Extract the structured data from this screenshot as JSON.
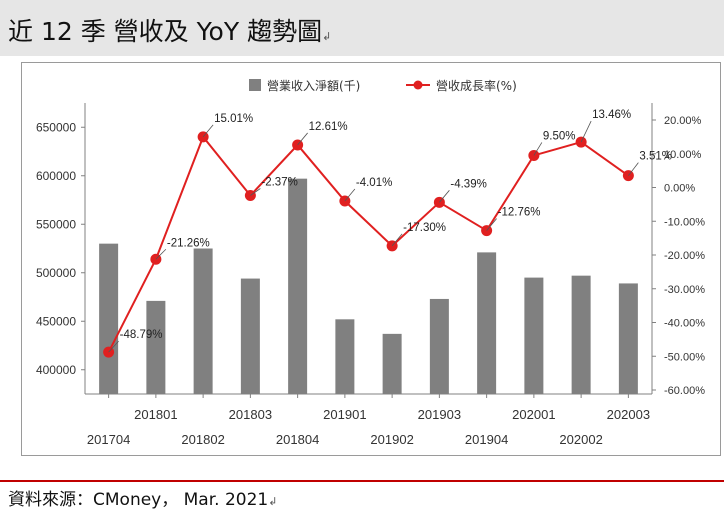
{
  "title": "近 12 季  營收及 YoY 趨勢圖",
  "paragraph_mark": "↲",
  "source": "資料來源：CMoney， Mar. 2021",
  "colors": {
    "bar": "#808080",
    "line": "#e02020",
    "axis": "#808080",
    "grid": "#bfbfbf"
  },
  "chart_data": {
    "type": "bar+line",
    "categories": [
      "201704",
      "201801",
      "201802",
      "201803",
      "201804",
      "201901",
      "201902",
      "201903",
      "201904",
      "202001",
      "202002",
      "202003"
    ],
    "series": [
      {
        "name": "營業收入淨額(千)",
        "axis": "left",
        "type": "bar",
        "values": [
          530000,
          471000,
          525000,
          494000,
          597000,
          452000,
          437000,
          473000,
          521000,
          495000,
          497000,
          489000
        ]
      },
      {
        "name": "營收成長率(%)",
        "axis": "right",
        "type": "line",
        "values": [
          -48.79,
          -21.26,
          15.01,
          -2.37,
          12.61,
          -4.01,
          -17.3,
          -4.39,
          -12.76,
          9.5,
          13.46,
          3.51
        ],
        "labels": [
          "-48.79%",
          "-21.26%",
          "15.01%",
          "-2.37%",
          "12.61%",
          "-4.01%",
          "-17.30%",
          "-4.39%",
          "-12.76%",
          "9.50%",
          "13.46%",
          "3.51%"
        ]
      }
    ],
    "y_left": {
      "ylim": [
        375000,
        675000
      ],
      "ticks": [
        "400000",
        "450000",
        "500000",
        "550000",
        "600000",
        "650000"
      ]
    },
    "y_right": {
      "ylim": [
        -60,
        20
      ],
      "ticks": [
        "20.00%",
        "10.00%",
        "0.00%",
        "-10.00%",
        "-20.00%",
        "-30.00%",
        "-40.00%",
        "-50.00%",
        "-60.00%"
      ]
    },
    "legend_position": "top",
    "grid": false
  }
}
